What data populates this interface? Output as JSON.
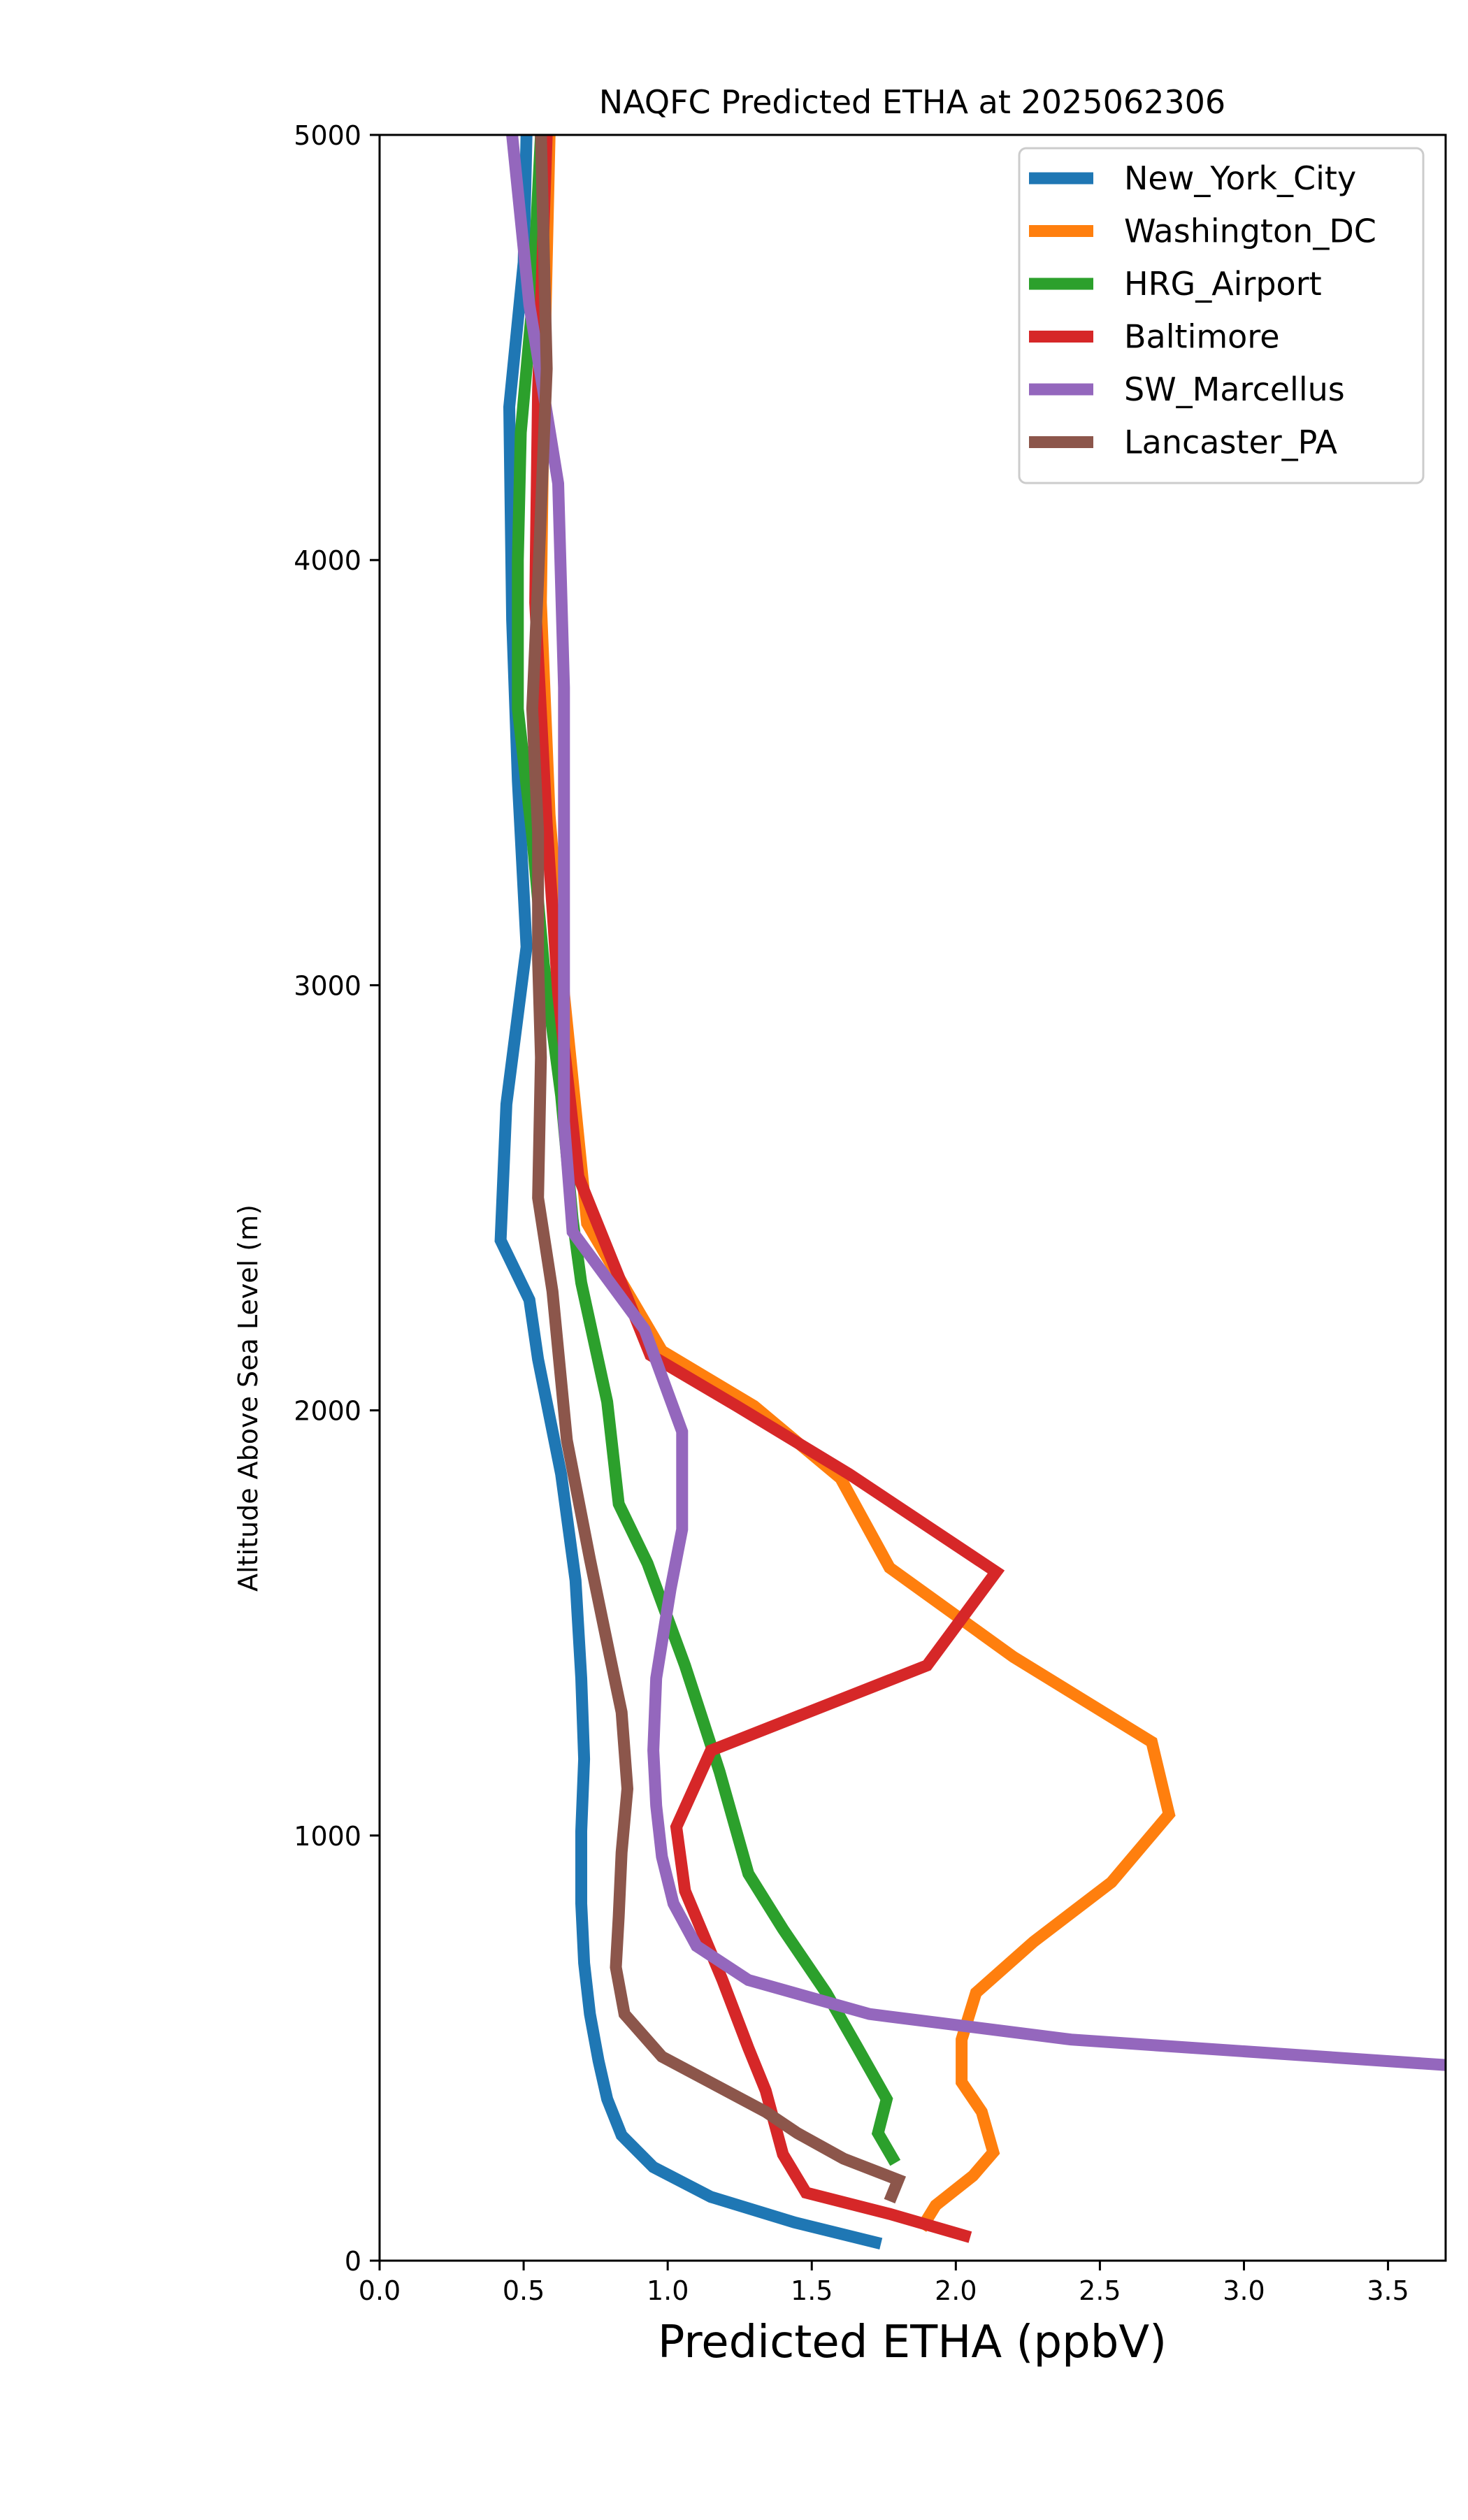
{
  "chart_data": {
    "type": "line",
    "title": "NAQFC Predicted ETHA at 2025062306",
    "xlabel": "Predicted ETHA (ppbV)",
    "ylabel": "Altitude Above Sea Level (m)",
    "xlim": [
      0.0,
      3.7
    ],
    "ylim": [
      0,
      5000
    ],
    "xticks": [
      "0.0",
      "0.5",
      "1.0",
      "1.5",
      "2.0",
      "2.5",
      "3.0",
      "3.5"
    ],
    "yticks": [
      "0",
      "1000",
      "2000",
      "3000",
      "4000",
      "5000"
    ],
    "xtick_values": [
      0.0,
      0.5,
      1.0,
      1.5,
      2.0,
      2.5,
      3.0,
      3.5
    ],
    "ytick_values": [
      0,
      1000,
      2000,
      3000,
      4000,
      5000
    ],
    "grid": false,
    "legend_position": "top-right",
    "series": [
      {
        "name": "New_York_City",
        "color": "#1f77b4",
        "points": [
          [
            1.74,
            40
          ],
          [
            1.44,
            90
          ],
          [
            1.15,
            150
          ],
          [
            0.95,
            220
          ],
          [
            0.84,
            295
          ],
          [
            0.79,
            380
          ],
          [
            0.76,
            470
          ],
          [
            0.73,
            580
          ],
          [
            0.71,
            700
          ],
          [
            0.7,
            840
          ],
          [
            0.7,
            1010
          ],
          [
            0.71,
            1180
          ],
          [
            0.7,
            1370
          ],
          [
            0.68,
            1600
          ],
          [
            0.63,
            1850
          ],
          [
            0.55,
            2120
          ],
          [
            0.52,
            2260
          ],
          [
            0.42,
            2400
          ],
          [
            0.44,
            2720
          ],
          [
            0.51,
            3090
          ],
          [
            0.48,
            3480
          ],
          [
            0.46,
            3860
          ],
          [
            0.45,
            4360
          ],
          [
            0.5,
            4700
          ],
          [
            0.51,
            5000
          ]
        ]
      },
      {
        "name": "Washington_DC",
        "color": "#ff7f0e",
        "points": [
          [
            1.88,
            75
          ],
          [
            1.93,
            130
          ],
          [
            2.06,
            200
          ],
          [
            2.13,
            255
          ],
          [
            2.09,
            350
          ],
          [
            2.02,
            420
          ],
          [
            2.02,
            520
          ],
          [
            2.07,
            630
          ],
          [
            2.27,
            750
          ],
          [
            2.54,
            890
          ],
          [
            2.74,
            1050
          ],
          [
            2.68,
            1220
          ],
          [
            2.2,
            1420
          ],
          [
            1.77,
            1630
          ],
          [
            1.6,
            1840
          ],
          [
            1.3,
            2010
          ],
          [
            0.98,
            2140
          ],
          [
            0.72,
            2440
          ],
          [
            0.64,
            2980
          ],
          [
            0.59,
            3400
          ],
          [
            0.56,
            3900
          ],
          [
            0.57,
            4400
          ],
          [
            0.59,
            5000
          ]
        ]
      },
      {
        "name": "HRG_Airport",
        "color": "#2ca02c",
        "points": [
          [
            1.79,
            230
          ],
          [
            1.73,
            300
          ],
          [
            1.76,
            380
          ],
          [
            1.66,
            500
          ],
          [
            1.55,
            630
          ],
          [
            1.4,
            780
          ],
          [
            1.28,
            910
          ],
          [
            1.18,
            1150
          ],
          [
            1.06,
            1400
          ],
          [
            0.93,
            1640
          ],
          [
            0.83,
            1780
          ],
          [
            0.79,
            2020
          ],
          [
            0.7,
            2300
          ],
          [
            0.67,
            2450
          ],
          [
            0.63,
            2740
          ],
          [
            0.57,
            3050
          ],
          [
            0.53,
            3350
          ],
          [
            0.48,
            3650
          ],
          [
            0.48,
            4000
          ],
          [
            0.49,
            4300
          ],
          [
            0.53,
            4600
          ],
          [
            0.56,
            5000
          ]
        ]
      },
      {
        "name": "Baltimore",
        "color": "#d62728",
        "points": [
          [
            2.05,
            55
          ],
          [
            1.77,
            110
          ],
          [
            1.48,
            160
          ],
          [
            1.4,
            250
          ],
          [
            1.34,
            400
          ],
          [
            1.28,
            500
          ],
          [
            1.19,
            660
          ],
          [
            1.06,
            870
          ],
          [
            1.03,
            1020
          ],
          [
            1.15,
            1200
          ],
          [
            1.9,
            1400
          ],
          [
            2.14,
            1620
          ],
          [
            1.63,
            1850
          ],
          [
            1.24,
            2010
          ],
          [
            0.94,
            2130
          ],
          [
            0.69,
            2550
          ],
          [
            0.62,
            2980
          ],
          [
            0.58,
            3380
          ],
          [
            0.54,
            3900
          ],
          [
            0.55,
            4400
          ],
          [
            0.58,
            5000
          ]
        ]
      },
      {
        "name": "SW_Marcellus",
        "color": "#9467bd",
        "points": [
          [
            3.7,
            460
          ],
          [
            2.4,
            520
          ],
          [
            1.7,
            580
          ],
          [
            1.28,
            660
          ],
          [
            1.1,
            740
          ],
          [
            1.02,
            840
          ],
          [
            0.98,
            950
          ],
          [
            0.96,
            1070
          ],
          [
            0.95,
            1200
          ],
          [
            0.96,
            1370
          ],
          [
            1.01,
            1580
          ],
          [
            1.05,
            1720
          ],
          [
            1.05,
            1950
          ],
          [
            0.92,
            2190
          ],
          [
            0.67,
            2420
          ],
          [
            0.64,
            2680
          ],
          [
            0.64,
            3120
          ],
          [
            0.64,
            3700
          ],
          [
            0.62,
            4180
          ],
          [
            0.52,
            4600
          ],
          [
            0.46,
            5000
          ]
        ]
      },
      {
        "name": "Lancaster_PA",
        "color": "#8c564b",
        "points": [
          [
            1.77,
            140
          ],
          [
            1.8,
            190
          ],
          [
            1.61,
            240
          ],
          [
            1.45,
            300
          ],
          [
            1.34,
            350
          ],
          [
            0.98,
            480
          ],
          [
            0.85,
            580
          ],
          [
            0.82,
            690
          ],
          [
            0.83,
            810
          ],
          [
            0.84,
            960
          ],
          [
            0.86,
            1110
          ],
          [
            0.84,
            1290
          ],
          [
            0.8,
            1420
          ],
          [
            0.73,
            1650
          ],
          [
            0.65,
            1930
          ],
          [
            0.6,
            2280
          ],
          [
            0.55,
            2500
          ],
          [
            0.56,
            2830
          ],
          [
            0.55,
            3060
          ],
          [
            0.55,
            3360
          ],
          [
            0.53,
            3650
          ],
          [
            0.55,
            3950
          ],
          [
            0.58,
            4450
          ],
          [
            0.56,
            5000
          ]
        ]
      }
    ]
  }
}
